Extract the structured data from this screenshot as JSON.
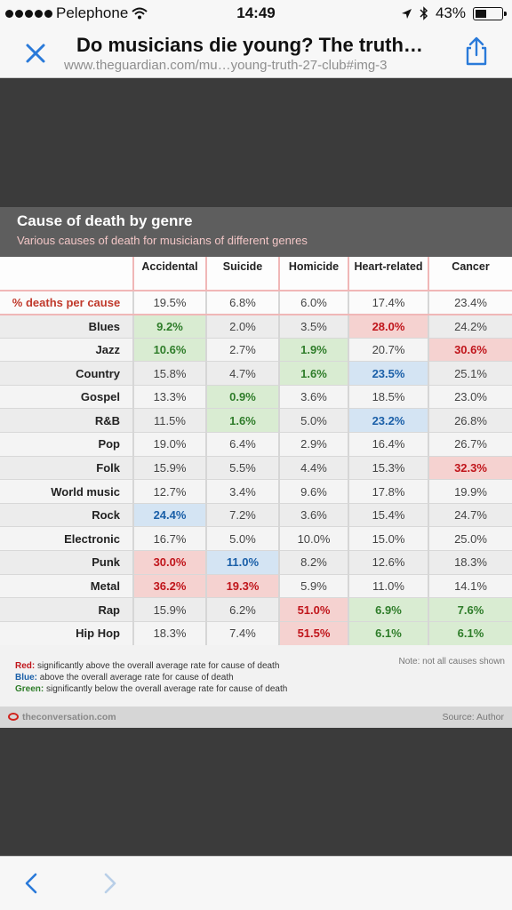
{
  "status_bar": {
    "carrier": "Pelephone",
    "time": "14:49",
    "battery": "43%",
    "battery_level": 0.43
  },
  "header": {
    "title": "Do musicians die young? The truth…",
    "url": "www.theguardian.com/mu…young-truth-27-club#img-3"
  },
  "infographic": {
    "title": "Cause of death by genre",
    "subtitle": "Various causes of death for musicians of different genres",
    "note": "Note: not all causes shown",
    "brand": "theconversation.com",
    "source": "Source: Author",
    "legend": [
      {
        "key": "Red:",
        "text": " significantly above the overall average rate for cause of death"
      },
      {
        "key": "Blue:",
        "text": " above the overall average rate for cause of death"
      },
      {
        "key": "Green:",
        "text": " significantly below the overall average rate for cause of death"
      }
    ]
  },
  "table": {
    "columns": [
      "Accidental",
      "Suicide",
      "Homicide",
      "Heart-related",
      "Cancer"
    ],
    "overall": {
      "label": "% deaths per cause",
      "values": [
        "19.5%",
        "6.8%",
        "6.0%",
        "17.4%",
        "23.4%"
      ]
    },
    "rows": [
      {
        "genre": "Blues",
        "values": [
          "9.2%",
          "2.0%",
          "3.5%",
          "28.0%",
          "24.2%"
        ],
        "marks": [
          "g",
          "",
          "",
          "r",
          ""
        ]
      },
      {
        "genre": "Jazz",
        "values": [
          "10.6%",
          "2.7%",
          "1.9%",
          "20.7%",
          "30.6%"
        ],
        "marks": [
          "g",
          "",
          "g",
          "",
          "r"
        ]
      },
      {
        "genre": "Country",
        "values": [
          "15.8%",
          "4.7%",
          "1.6%",
          "23.5%",
          "25.1%"
        ],
        "marks": [
          "",
          "",
          "g",
          "b",
          ""
        ]
      },
      {
        "genre": "Gospel",
        "values": [
          "13.3%",
          "0.9%",
          "3.6%",
          "18.5%",
          "23.0%"
        ],
        "marks": [
          "",
          "g",
          "",
          "",
          ""
        ]
      },
      {
        "genre": "R&B",
        "values": [
          "11.5%",
          "1.6%",
          "5.0%",
          "23.2%",
          "26.8%"
        ],
        "marks": [
          "",
          "g",
          "",
          "b",
          ""
        ]
      },
      {
        "genre": "Pop",
        "values": [
          "19.0%",
          "6.4%",
          "2.9%",
          "16.4%",
          "26.7%"
        ],
        "marks": [
          "",
          "",
          "",
          "",
          ""
        ]
      },
      {
        "genre": "Folk",
        "values": [
          "15.9%",
          "5.5%",
          "4.4%",
          "15.3%",
          "32.3%"
        ],
        "marks": [
          "",
          "",
          "",
          "",
          "r"
        ]
      },
      {
        "genre": "World music",
        "values": [
          "12.7%",
          "3.4%",
          "9.6%",
          "17.8%",
          "19.9%"
        ],
        "marks": [
          "",
          "",
          "",
          "",
          ""
        ]
      },
      {
        "genre": "Rock",
        "values": [
          "24.4%",
          "7.2%",
          "3.6%",
          "15.4%",
          "24.7%"
        ],
        "marks": [
          "b",
          "",
          "",
          "",
          ""
        ]
      },
      {
        "genre": "Electronic",
        "values": [
          "16.7%",
          "5.0%",
          "10.0%",
          "15.0%",
          "25.0%"
        ],
        "marks": [
          "",
          "",
          "",
          "",
          ""
        ]
      },
      {
        "genre": "Punk",
        "values": [
          "30.0%",
          "11.0%",
          "8.2%",
          "12.6%",
          "18.3%"
        ],
        "marks": [
          "r",
          "b",
          "",
          "",
          ""
        ]
      },
      {
        "genre": "Metal",
        "values": [
          "36.2%",
          "19.3%",
          "5.9%",
          "11.0%",
          "14.1%"
        ],
        "marks": [
          "r",
          "r",
          "",
          "",
          ""
        ]
      },
      {
        "genre": "Rap",
        "values": [
          "15.9%",
          "6.2%",
          "51.0%",
          "6.9%",
          "7.6%"
        ],
        "marks": [
          "",
          "",
          "r",
          "g",
          "g"
        ]
      },
      {
        "genre": "Hip Hop",
        "values": [
          "18.3%",
          "7.4%",
          "51.5%",
          "6.1%",
          "6.1%"
        ],
        "marks": [
          "",
          "",
          "r",
          "g",
          "g"
        ]
      }
    ]
  },
  "colors": {
    "red": "#c0151b",
    "blue": "#1a5fa8",
    "green": "#2f7d2a",
    "accent": "#2a7ad9"
  },
  "icons": {
    "close": "close-icon",
    "share": "share-icon",
    "back": "chevron-left-icon",
    "forward": "chevron-right-icon"
  }
}
